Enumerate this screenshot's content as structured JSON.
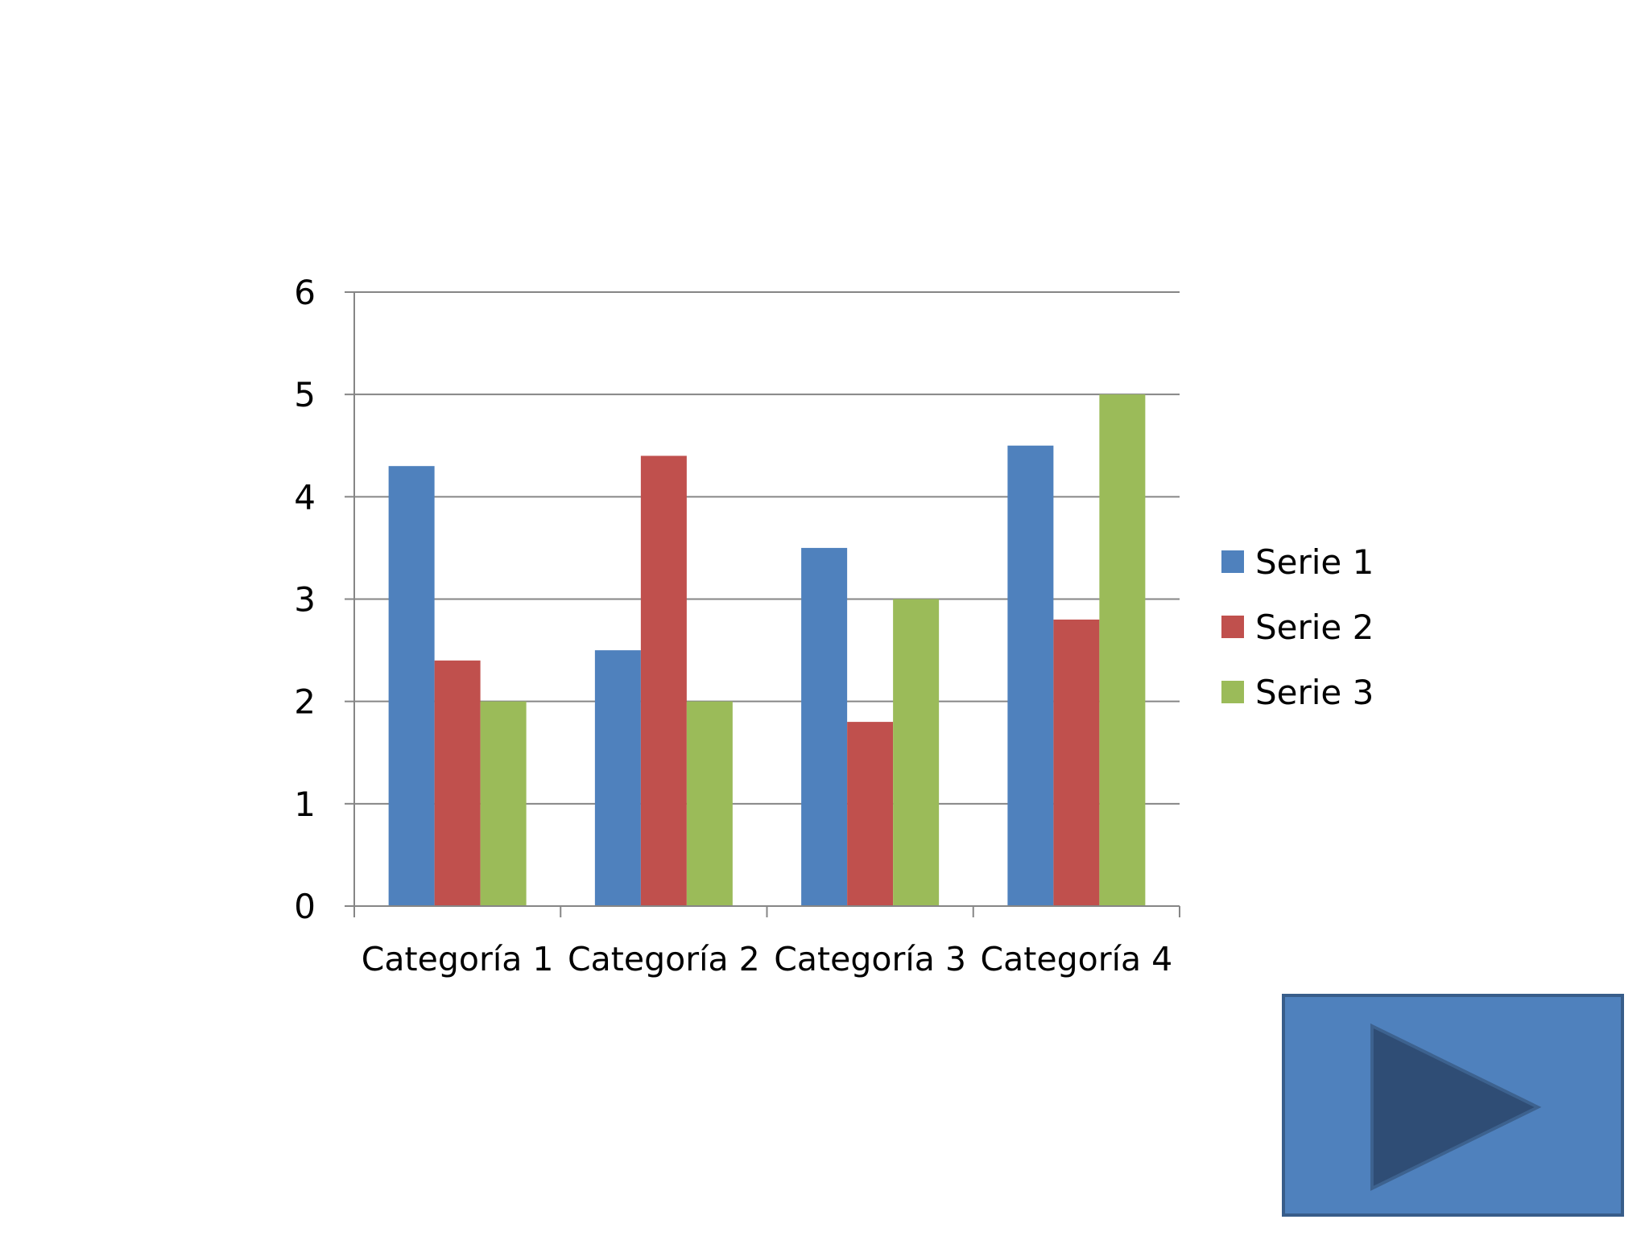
{
  "chart_data": {
    "type": "bar",
    "categories": [
      "Categoría 1",
      "Categoría 2",
      "Categoría 3",
      "Categoría 4"
    ],
    "series": [
      {
        "name": "Serie 1",
        "values": [
          4.3,
          2.5,
          3.5,
          4.5
        ],
        "color": "#4f81bd"
      },
      {
        "name": "Serie 2",
        "values": [
          2.4,
          4.4,
          1.8,
          2.8
        ],
        "color": "#c0504d"
      },
      {
        "name": "Serie 3",
        "values": [
          2,
          2,
          3,
          5
        ],
        "color": "#9bbb59"
      }
    ],
    "title": "",
    "xlabel": "",
    "ylabel": "",
    "ylim": [
      0,
      6
    ],
    "yticks": [
      0,
      1,
      2,
      3,
      4,
      5,
      6
    ],
    "grid": true,
    "legend_position": "right"
  },
  "next_button": {
    "icon": "play-triangle-icon",
    "fill_color": "#4f81bd",
    "icon_color": "#2f4d75"
  }
}
